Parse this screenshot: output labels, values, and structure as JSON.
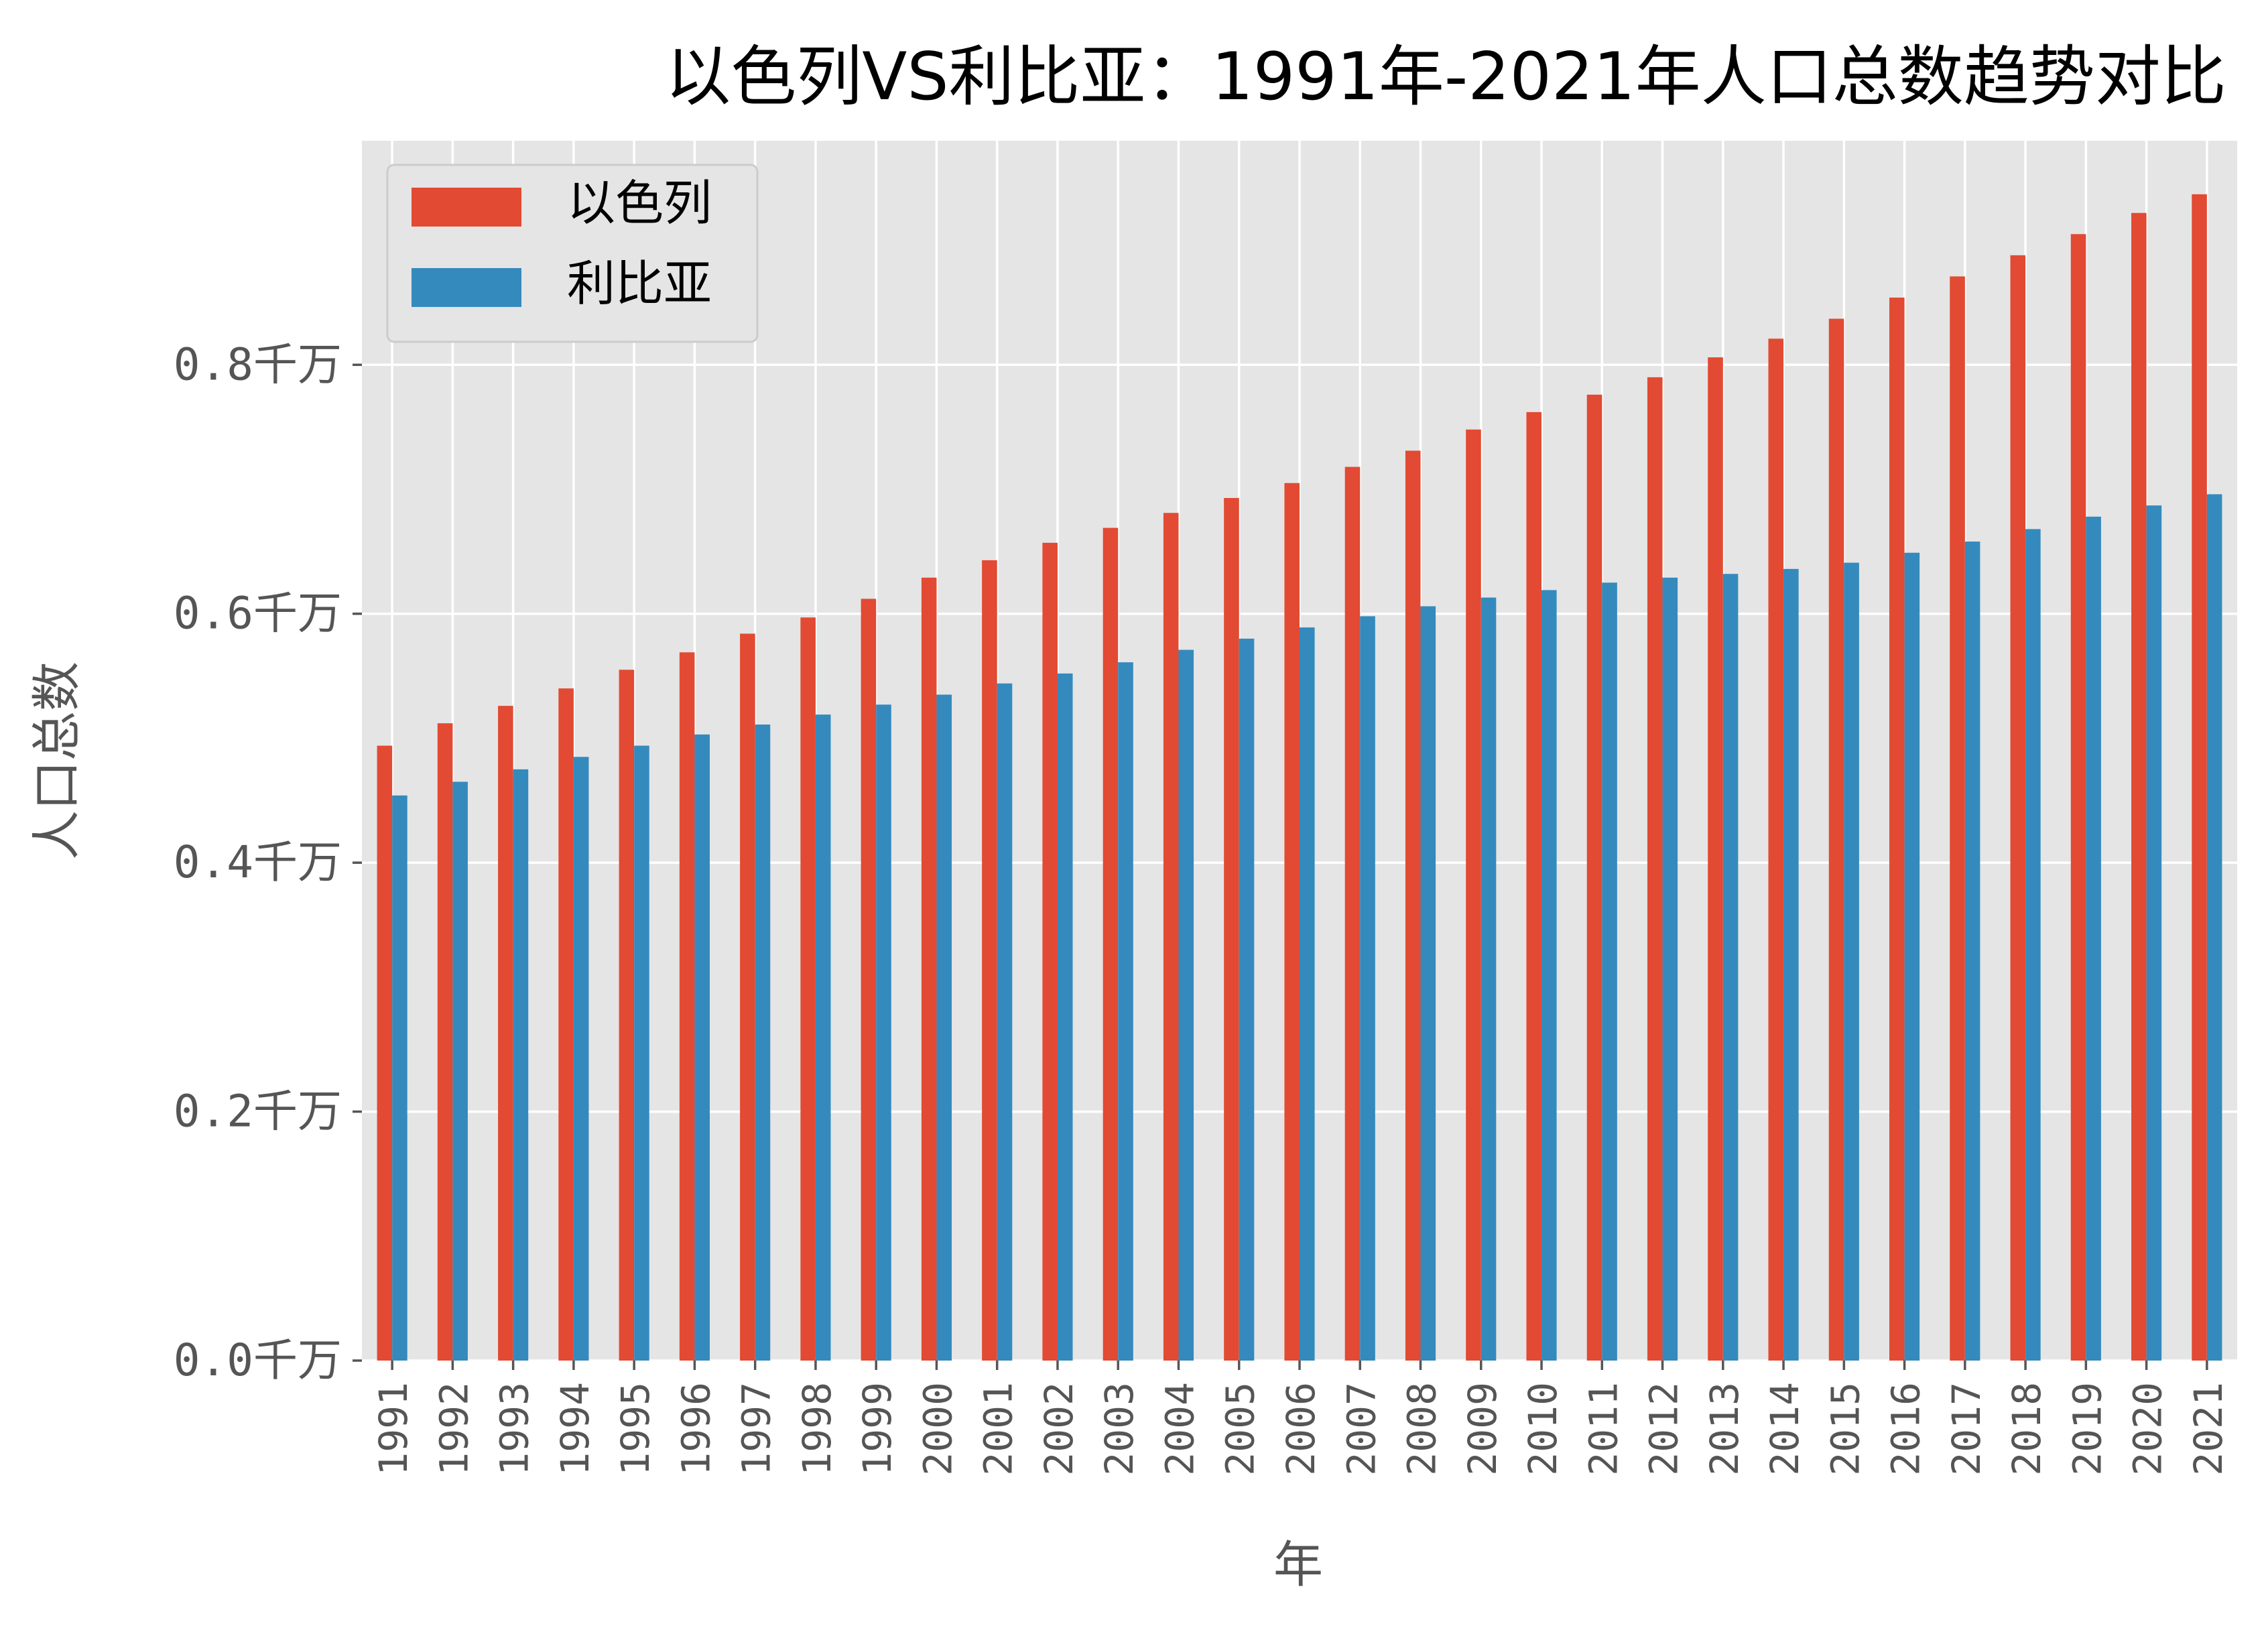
{
  "chart_data": {
    "type": "bar",
    "title": "以色列VS利比亚：1991年-2021年人口总数趋势对比",
    "xlabel": "年",
    "ylabel": "人口总数",
    "ylim": [
      0,
      0.98
    ],
    "yticks": [
      {
        "value": 0.0,
        "label": "0.0千万"
      },
      {
        "value": 0.2,
        "label": "0.2千万"
      },
      {
        "value": 0.4,
        "label": "0.4千万"
      },
      {
        "value": 0.6,
        "label": "0.6千万"
      },
      {
        "value": 0.8,
        "label": "0.8千万"
      }
    ],
    "grid": true,
    "legend": "top-left",
    "categories": [
      "1991",
      "1992",
      "1993",
      "1994",
      "1995",
      "1996",
      "1997",
      "1998",
      "1999",
      "2000",
      "2001",
      "2002",
      "2003",
      "2004",
      "2005",
      "2006",
      "2007",
      "2008",
      "2009",
      "2010",
      "2011",
      "2012",
      "2013",
      "2014",
      "2015",
      "2016",
      "2017",
      "2018",
      "2019",
      "2020",
      "2021"
    ],
    "series": [
      {
        "name": "以色列",
        "color": "#E24A33",
        "values": [
          0.494,
          0.512,
          0.526,
          0.54,
          0.555,
          0.569,
          0.584,
          0.597,
          0.612,
          0.629,
          0.643,
          0.657,
          0.669,
          0.681,
          0.693,
          0.705,
          0.718,
          0.731,
          0.748,
          0.762,
          0.776,
          0.79,
          0.806,
          0.821,
          0.837,
          0.854,
          0.871,
          0.888,
          0.905,
          0.922,
          0.937
        ]
      },
      {
        "name": "利比亚",
        "color": "#348ABD",
        "values": [
          0.454,
          0.465,
          0.475,
          0.485,
          0.494,
          0.503,
          0.511,
          0.519,
          0.527,
          0.535,
          0.544,
          0.552,
          0.561,
          0.571,
          0.58,
          0.589,
          0.598,
          0.606,
          0.613,
          0.619,
          0.625,
          0.629,
          0.632,
          0.636,
          0.641,
          0.649,
          0.658,
          0.668,
          0.678,
          0.687,
          0.696
        ]
      }
    ]
  },
  "style": {
    "plot_bg": "#E5E5E5",
    "grid_color": "#FFFFFF",
    "text_color": "#555555",
    "title_color": "#000000"
  }
}
